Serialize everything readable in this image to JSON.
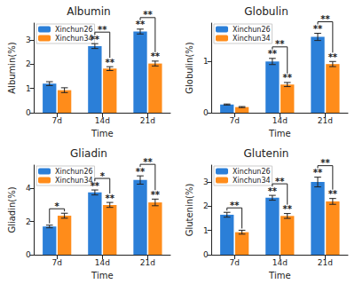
{
  "chart_data": [
    {
      "type": "bar",
      "title": "Albumin",
      "x_label": "Time",
      "y_label": "Albumin(%)",
      "categories": [
        "7d",
        "14d",
        "21d"
      ],
      "series": [
        {
          "name": "Xinchun26",
          "color": "#2b7fd8",
          "values": [
            1.2,
            2.75,
            3.35
          ],
          "errors": [
            0.08,
            0.1,
            0.1
          ],
          "significance": [
            null,
            "**",
            "**"
          ]
        },
        {
          "name": "Xinchun34",
          "color": "#ff8c1a",
          "values": [
            0.93,
            1.82,
            2.03
          ],
          "errors": [
            0.1,
            0.08,
            0.1
          ],
          "significance": [
            null,
            "**",
            "**"
          ]
        }
      ],
      "comparisons": [
        null,
        "**",
        "**"
      ],
      "ylim": [
        0,
        3.7
      ],
      "yticks": [
        0,
        1,
        2,
        3
      ],
      "legend": "upper left",
      "grid": false
    },
    {
      "type": "bar",
      "title": "Globulin",
      "x_label": "Time",
      "y_label": "Globulin(%)",
      "categories": [
        "7d",
        "14d",
        "21d"
      ],
      "series": [
        {
          "name": "Xinchun26",
          "color": "#2b7fd8",
          "values": [
            0.16,
            1.0,
            1.48
          ],
          "errors": [
            0.01,
            0.06,
            0.07
          ],
          "significance": [
            null,
            "**",
            "**"
          ]
        },
        {
          "name": "Xinchun34",
          "color": "#ff8c1a",
          "values": [
            0.11,
            0.55,
            0.95
          ],
          "errors": [
            0.01,
            0.04,
            0.05
          ],
          "significance": [
            null,
            "**",
            "**"
          ]
        }
      ],
      "comparisons": [
        null,
        "**",
        "**"
      ],
      "ylim": [
        0,
        1.75
      ],
      "yticks": [
        0,
        1
      ],
      "legend": "upper left",
      "grid": false
    },
    {
      "type": "bar",
      "title": "Gliadin",
      "x_label": "Time",
      "y_label": "Gliadin(%)",
      "categories": [
        "7d",
        "14d",
        "21d"
      ],
      "series": [
        {
          "name": "Xinchun26",
          "color": "#2b7fd8",
          "values": [
            1.7,
            3.75,
            4.5
          ],
          "errors": [
            0.08,
            0.15,
            0.25
          ],
          "significance": [
            null,
            "**",
            "**"
          ]
        },
        {
          "name": "Xinchun34",
          "color": "#ff8c1a",
          "values": [
            2.35,
            3.0,
            3.15
          ],
          "errors": [
            0.15,
            0.15,
            0.2
          ],
          "significance": [
            null,
            "**",
            "**"
          ]
        }
      ],
      "comparisons": [
        "*",
        "*",
        "**"
      ],
      "ylim": [
        0,
        5.4
      ],
      "yticks": [
        0,
        2,
        4
      ],
      "legend": "upper left",
      "grid": false
    },
    {
      "type": "bar",
      "title": "Glutenin",
      "x_label": "Time",
      "y_label": "Glutenin(%)",
      "categories": [
        "7d",
        "14d",
        "21d"
      ],
      "series": [
        {
          "name": "Xinchun26",
          "color": "#2b7fd8",
          "values": [
            1.65,
            2.35,
            3.0
          ],
          "errors": [
            0.1,
            0.1,
            0.2
          ],
          "significance": [
            null,
            "**",
            "**"
          ]
        },
        {
          "name": "Xinchun34",
          "color": "#ff8c1a",
          "values": [
            0.93,
            1.6,
            2.2
          ],
          "errors": [
            0.08,
            0.1,
            0.12
          ],
          "significance": [
            null,
            "**",
            "**"
          ]
        }
      ],
      "comparisons": [
        "**",
        "**",
        "**"
      ],
      "ylim": [
        0,
        3.7
      ],
      "yticks": [
        0,
        1,
        2,
        3
      ],
      "legend": "upper left",
      "grid": false
    }
  ]
}
